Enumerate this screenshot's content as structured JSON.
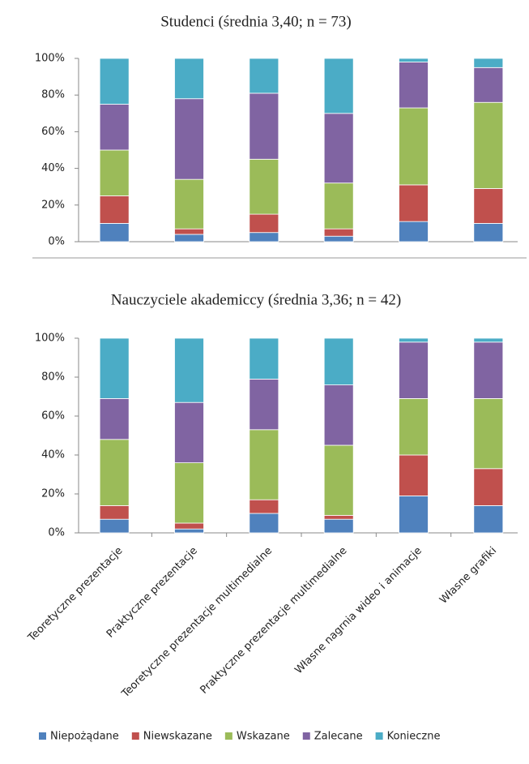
{
  "chart_data": [
    {
      "type": "stacked_bar",
      "title": "Studenci (średnia 3,40; n = 73)",
      "ylim": [
        0,
        100
      ],
      "yticks": [
        {
          "value": 0,
          "label": "0%"
        },
        {
          "value": 20,
          "label": "20%"
        },
        {
          "value": 40,
          "label": "40%"
        },
        {
          "value": 60,
          "label": "60%"
        },
        {
          "value": 80,
          "label": "80%"
        },
        {
          "value": 100,
          "label": "100%"
        }
      ],
      "series": [
        {
          "color": "#4f81bd",
          "values": [
            10,
            4,
            5,
            3,
            11,
            10
          ]
        },
        {
          "color": "#c0504d",
          "values": [
            15,
            3,
            10,
            4,
            20,
            19
          ]
        },
        {
          "color": "#9bbb59",
          "values": [
            25,
            27,
            30,
            25,
            42,
            47
          ]
        },
        {
          "color": "#8064a2",
          "values": [
            25,
            44,
            36,
            38,
            25,
            19
          ]
        },
        {
          "color": "#4bacc6",
          "values": [
            25,
            22,
            19,
            30,
            2,
            5
          ]
        }
      ]
    },
    {
      "type": "stacked_bar",
      "title": "Nauczyciele akademiccy (średnia 3,36; n = 42)",
      "categories": [
        "Teoretyczne prezentacje",
        "Praktyczne prezentacje",
        "Teoretyczne prezentacje multimedialne",
        "Praktyczne prezentacje multimedialne",
        "Własne nagrnia wideo i animacje",
        "Własne grafiki"
      ],
      "ylim": [
        0,
        100
      ],
      "yticks": [
        {
          "value": 0,
          "label": "0%"
        },
        {
          "value": 20,
          "label": "20%"
        },
        {
          "value": 40,
          "label": "40%"
        },
        {
          "value": 60,
          "label": "60%"
        },
        {
          "value": 80,
          "label": "80%"
        },
        {
          "value": 100,
          "label": "100%"
        }
      ],
      "series": [
        {
          "name": "Niepożądane",
          "color": "#4f81bd",
          "values": [
            7,
            2,
            10,
            7,
            19,
            14
          ]
        },
        {
          "name": "Niewskazane",
          "color": "#c0504d",
          "values": [
            7,
            3,
            7,
            2,
            21,
            19
          ]
        },
        {
          "name": "Wskazane",
          "color": "#9bbb59",
          "values": [
            34,
            31,
            36,
            36,
            29,
            36
          ]
        },
        {
          "name": "Zalecane",
          "color": "#8064a2",
          "values": [
            21,
            31,
            26,
            31,
            29,
            29
          ]
        },
        {
          "name": "Konieczne",
          "color": "#4bacc6",
          "values": [
            31,
            33,
            21,
            24,
            2,
            2
          ]
        }
      ]
    }
  ]
}
